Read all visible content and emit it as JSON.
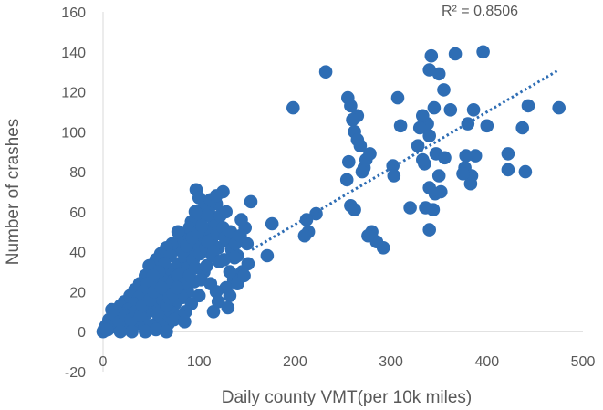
{
  "chart_data": {
    "type": "scatter",
    "title": "",
    "xlabel": "Daily county VMT(per 10k miles)",
    "ylabel": "Number of crashes",
    "xlim": [
      0,
      500
    ],
    "ylim": [
      -20,
      160
    ],
    "xticks": [
      0,
      100,
      200,
      300,
      400,
      500
    ],
    "yticks": [
      -20,
      0,
      20,
      40,
      60,
      80,
      100,
      120,
      140,
      160
    ],
    "xtick_labels": [
      "0",
      "100",
      "200",
      "300",
      "400",
      "500"
    ],
    "ytick_labels": [
      "-20",
      "0",
      "20",
      "40",
      "60",
      "80",
      "100",
      "120",
      "140",
      "160"
    ],
    "grid": false,
    "legend": "none",
    "marker_color": "#2E6DB4",
    "trendline": {
      "type": "linear",
      "style": "dotted",
      "color": "#2E6DB4",
      "x_range": [
        155,
        475
      ],
      "y_range": [
        41,
        131
      ],
      "annotation": "R² = 0.8506"
    },
    "series": [
      {
        "points": [
          [
            475,
            112
          ],
          [
            443,
            113
          ],
          [
            440,
            80
          ],
          [
            437,
            102
          ],
          [
            422,
            89
          ],
          [
            422,
            81
          ],
          [
            396,
            140
          ],
          [
            400,
            103
          ],
          [
            388,
            88
          ],
          [
            386,
            111
          ],
          [
            384,
            78
          ],
          [
            383,
            74
          ],
          [
            380,
            104
          ],
          [
            378,
            88
          ],
          [
            377,
            82
          ],
          [
            375,
            79
          ],
          [
            367,
            139
          ],
          [
            362,
            111
          ],
          [
            355,
            121
          ],
          [
            350,
            129
          ],
          [
            342,
            138
          ],
          [
            340,
            131
          ],
          [
            340,
            98
          ],
          [
            345,
            112
          ],
          [
            347,
            89
          ],
          [
            338,
            104
          ],
          [
            333,
            108
          ],
          [
            330,
            102
          ],
          [
            328,
            93
          ],
          [
            335,
            84
          ],
          [
            336,
            62
          ],
          [
            340,
            72
          ],
          [
            344,
            61
          ],
          [
            346,
            69
          ],
          [
            350,
            78
          ],
          [
            340,
            51
          ],
          [
            352,
            70
          ],
          [
            356,
            87
          ],
          [
            333,
            86
          ],
          [
            320,
            62
          ],
          [
            310,
            103
          ],
          [
            307,
            117
          ],
          [
            302,
            83
          ],
          [
            303,
            78
          ],
          [
            292,
            42
          ],
          [
            285,
            45
          ],
          [
            280,
            50
          ],
          [
            276,
            48
          ],
          [
            270,
            80
          ],
          [
            268,
            93
          ],
          [
            272,
            82
          ],
          [
            274,
            86
          ],
          [
            265,
            108
          ],
          [
            262,
            100
          ],
          [
            260,
            106
          ],
          [
            258,
            113
          ],
          [
            256,
            85
          ],
          [
            254,
            76
          ],
          [
            255,
            117
          ],
          [
            258,
            63
          ],
          [
            262,
            61
          ],
          [
            265,
            96
          ],
          [
            278,
            89
          ],
          [
            232,
            130
          ],
          [
            198,
            112
          ],
          [
            222,
            59
          ],
          [
            214,
            50
          ],
          [
            212,
            56
          ],
          [
            210,
            48
          ],
          [
            176,
            54
          ],
          [
            171,
            38
          ],
          [
            154,
            65
          ],
          [
            150,
            44
          ],
          [
            148,
            52
          ],
          [
            144,
            56
          ],
          [
            140,
            38
          ],
          [
            145,
            30
          ],
          [
            132,
            18
          ],
          [
            136,
            26
          ],
          [
            125,
            70
          ],
          [
            118,
            64
          ],
          [
            110,
            60
          ],
          [
            97,
            71
          ],
          [
            100,
            67
          ],
          [
            92,
            55
          ],
          [
            86,
            48
          ],
          [
            80,
            45
          ],
          [
            76,
            41
          ],
          [
            72,
            44
          ],
          [
            66,
            42
          ],
          [
            60,
            39
          ],
          [
            55,
            36
          ],
          [
            48,
            33
          ],
          [
            44,
            28
          ],
          [
            38,
            24
          ],
          [
            33,
            21
          ],
          [
            28,
            18
          ],
          [
            22,
            15
          ],
          [
            18,
            13
          ],
          [
            14,
            10
          ],
          [
            10,
            8
          ],
          [
            6,
            6
          ],
          [
            3,
            3
          ],
          [
            1,
            1
          ],
          [
            0,
            0
          ],
          [
            2,
            2
          ],
          [
            5,
            1
          ],
          [
            8,
            3
          ],
          [
            12,
            5
          ],
          [
            15,
            2
          ],
          [
            20,
            6
          ],
          [
            24,
            3
          ],
          [
            27,
            9
          ],
          [
            31,
            12
          ],
          [
            35,
            7
          ],
          [
            40,
            16
          ],
          [
            43,
            11
          ],
          [
            47,
            19
          ],
          [
            52,
            14
          ],
          [
            56,
            24
          ],
          [
            59,
            18
          ],
          [
            63,
            27
          ],
          [
            67,
            21
          ],
          [
            71,
            31
          ],
          [
            74,
            26
          ],
          [
            78,
            34
          ],
          [
            81,
            29
          ],
          [
            85,
            37
          ],
          [
            88,
            32
          ],
          [
            91,
            41
          ],
          [
            94,
            36
          ],
          [
            98,
            44
          ],
          [
            101,
            39
          ],
          [
            104,
            48
          ],
          [
            107,
            42
          ],
          [
            110,
            51
          ],
          [
            113,
            46
          ],
          [
            116,
            55
          ],
          [
            119,
            49
          ],
          [
            122,
            58
          ],
          [
            125,
            52
          ],
          [
            128,
            60
          ],
          [
            131,
            45
          ],
          [
            134,
            41
          ],
          [
            137,
            37
          ],
          [
            105,
            30
          ],
          [
            95,
            25
          ],
          [
            88,
            20
          ],
          [
            82,
            17
          ],
          [
            75,
            14
          ],
          [
            70,
            10
          ],
          [
            65,
            8
          ],
          [
            60,
            6
          ],
          [
            55,
            4
          ],
          [
            50,
            3
          ],
          [
            45,
            9
          ],
          [
            40,
            5
          ],
          [
            36,
            4
          ],
          [
            30,
            2
          ],
          [
            25,
            4
          ],
          [
            58,
            12
          ],
          [
            62,
            16
          ],
          [
            68,
            20
          ],
          [
            72,
            24
          ],
          [
            78,
            28
          ],
          [
            84,
            24
          ],
          [
            90,
            28
          ],
          [
            96,
            32
          ],
          [
            102,
            26
          ],
          [
            108,
            33
          ],
          [
            114,
            38
          ],
          [
            120,
            42
          ],
          [
            126,
            36
          ],
          [
            132,
            30
          ],
          [
            140,
            24
          ],
          [
            128,
            22
          ],
          [
            118,
            20
          ],
          [
            112,
            24
          ],
          [
            100,
            18
          ],
          [
            92,
            14
          ],
          [
            86,
            10
          ],
          [
            80,
            8
          ],
          [
            74,
            6
          ],
          [
            68,
            4
          ],
          [
            62,
            2
          ],
          [
            100,
            55
          ],
          [
            105,
            62
          ],
          [
            112,
            66
          ],
          [
            108,
            58
          ],
          [
            118,
            68
          ],
          [
            96,
            60
          ],
          [
            90,
            52
          ],
          [
            84,
            46
          ],
          [
            78,
            50
          ],
          [
            70,
            38
          ],
          [
            64,
            34
          ],
          [
            58,
            30
          ],
          [
            52,
            28
          ],
          [
            46,
            24
          ],
          [
            42,
            20
          ],
          [
            37,
            17
          ],
          [
            32,
            14
          ],
          [
            26,
            11
          ],
          [
            21,
            9
          ],
          [
            16,
            7
          ],
          [
            11,
            4
          ],
          [
            7,
            3
          ],
          [
            4,
            1
          ],
          [
            9,
            11
          ],
          [
            13,
            8
          ],
          [
            17,
            5
          ],
          [
            23,
            8
          ],
          [
            29,
            6
          ],
          [
            34,
            10
          ],
          [
            39,
            8
          ],
          [
            41,
            13
          ],
          [
            49,
            16
          ],
          [
            53,
            20
          ],
          [
            57,
            9
          ],
          [
            61,
            22
          ],
          [
            66,
            13
          ],
          [
            69,
            17
          ],
          [
            73,
            19
          ],
          [
            77,
            22
          ],
          [
            83,
            40
          ],
          [
            87,
            43
          ],
          [
            93,
            47
          ],
          [
            99,
            50
          ],
          [
            103,
            53
          ],
          [
            109,
            45
          ],
          [
            115,
            40
          ],
          [
            121,
            35
          ],
          [
            127,
            47
          ],
          [
            133,
            50
          ],
          [
            138,
            44
          ],
          [
            143,
            48
          ],
          [
            147,
            28
          ],
          [
            151,
            34
          ],
          [
            85,
            5
          ],
          [
            115,
            10
          ],
          [
            120,
            15
          ],
          [
            130,
            12
          ],
          [
            44,
            0
          ],
          [
            30,
            0
          ],
          [
            18,
            0
          ],
          [
            55,
            1
          ],
          [
            66,
            0
          ]
        ]
      }
    ]
  }
}
